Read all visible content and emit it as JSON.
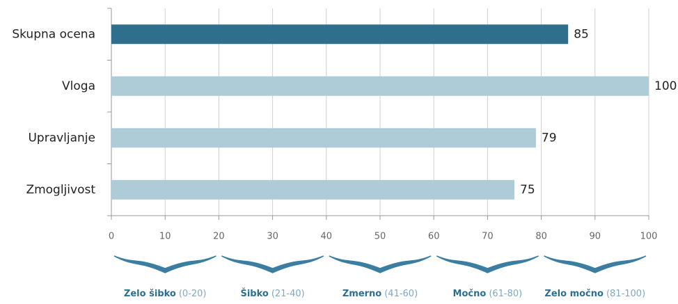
{
  "chart_data": {
    "type": "barh",
    "categories": [
      "Skupna ocena",
      "Vloga",
      "Upravljanje",
      "Zmogljivost"
    ],
    "values": [
      85,
      100,
      79,
      75
    ],
    "colors": [
      "#2e6f8e",
      "#aecbd8",
      "#aecbd8",
      "#aecbd8"
    ],
    "xlim": [
      0,
      100
    ],
    "xticks": [
      0,
      10,
      20,
      30,
      40,
      50,
      60,
      70,
      80,
      90,
      100
    ],
    "grid": true,
    "bands": [
      {
        "name": "Zelo šibko",
        "range": "(0-20)"
      },
      {
        "name": "Šibko",
        "range": "(21-40)"
      },
      {
        "name": "Zmerno",
        "range": "(41-60)"
      },
      {
        "name": "Močno",
        "range": "(61-80)"
      },
      {
        "name": "Zelo močno",
        "range": "(81-100)"
      }
    ]
  }
}
